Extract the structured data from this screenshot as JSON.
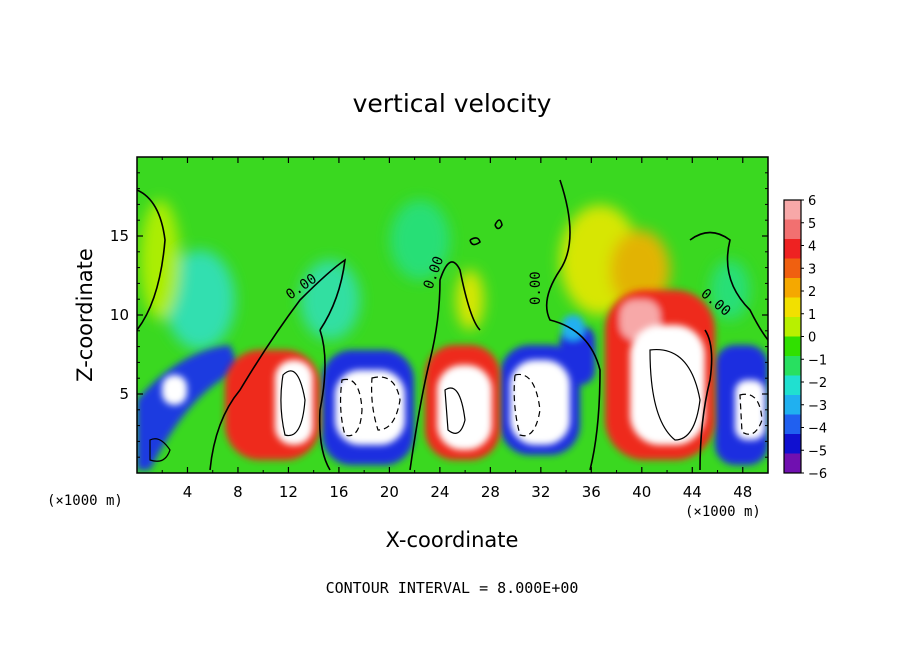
{
  "chart_data": {
    "type": "heatmap",
    "title": "vertical velocity",
    "xlabel": "X-coordinate",
    "ylabel": "Z-coordinate",
    "x_unit_left": "(×1000 m)",
    "x_unit_right": "(×1000 m)",
    "xlim": [
      0,
      50
    ],
    "ylim": [
      0,
      20
    ],
    "xticks": [
      "4",
      "8",
      "12",
      "16",
      "20",
      "24",
      "28",
      "32",
      "36",
      "40",
      "44",
      "48"
    ],
    "yticks": [
      "5",
      "10",
      "15"
    ],
    "colorbar": {
      "levels": [
        "6",
        "5",
        "4",
        "3",
        "2",
        "1",
        "0",
        "−1",
        "−2",
        "−3",
        "−4",
        "−5",
        "−6"
      ],
      "colors": [
        "#f7a8a8",
        "#f27070",
        "#ee2222",
        "#f06010",
        "#f5a800",
        "#f2e000",
        "#b8f000",
        "#30e000",
        "#28e060",
        "#20e0d0",
        "#20b0f0",
        "#2060f0",
        "#1010d0",
        "#7010b0"
      ]
    },
    "contour_labels": [
      "0.00",
      "0.00",
      "0.00",
      "0.00"
    ],
    "footnote": "CONTOUR INTERVAL = 8.000E+00"
  }
}
